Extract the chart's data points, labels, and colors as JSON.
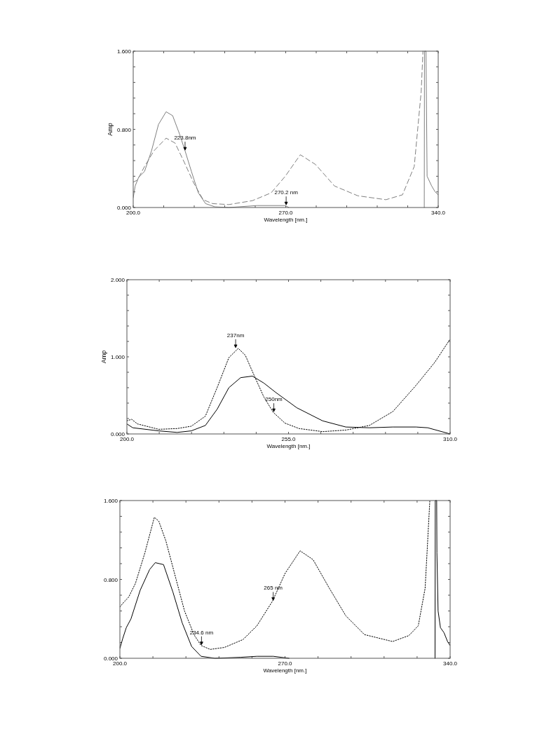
{
  "chart_data": [
    {
      "type": "line",
      "ylabel": "Amp",
      "xlabel": "Wavelength [nm.]",
      "xlim": [
        200,
        340
      ],
      "ylim": [
        0,
        1.6
      ],
      "xticks": [
        {
          "value": 200,
          "label": "200.0"
        },
        {
          "value": 214,
          "label": null
        },
        {
          "value": 228,
          "label": null
        },
        {
          "value": 242,
          "label": null
        },
        {
          "value": 256,
          "label": null
        },
        {
          "value": 270,
          "label": "270.0"
        },
        {
          "value": 284,
          "label": null
        },
        {
          "value": 298,
          "label": null
        },
        {
          "value": 312,
          "label": null
        },
        {
          "value": 326,
          "label": null
        },
        {
          "value": 340,
          "label": "340.0"
        }
      ],
      "yticks": [
        {
          "value": 0,
          "label": "0.000"
        },
        {
          "value": 0.16,
          "label": null
        },
        {
          "value": 0.32,
          "label": null
        },
        {
          "value": 0.48,
          "label": null
        },
        {
          "value": 0.64,
          "label": null
        },
        {
          "value": 0.8,
          "label": "0.800"
        },
        {
          "value": 0.96,
          "label": null
        },
        {
          "value": 1.12,
          "label": null
        },
        {
          "value": 1.28,
          "label": null
        },
        {
          "value": 1.44,
          "label": null
        },
        {
          "value": 1.6,
          "label": "1.600"
        }
      ],
      "grid": false,
      "series": [
        {
          "color": "#7f7f7f",
          "line_style": "solid",
          "x": [
            200,
            200.9,
            202.5,
            205.2,
            208.4,
            211.6,
            215.1,
            218.1,
            221.3,
            223.8,
            226.7,
            229.9,
            233.2,
            237.5,
            243.9,
            256.8,
            269.8,
            271.4,
            272,
            333.6,
            333.7,
            334.4,
            334.9,
            337,
            338.6,
            340
          ],
          "values": [
            0.1,
            0.22,
            0.31,
            0.37,
            0.58,
            0.85,
            0.98,
            0.94,
            0.75,
            0.58,
            0.37,
            0.15,
            0.04,
            0.007,
            0,
            0.02,
            0.02,
            0,
            null,
            0,
            1.6,
            1.6,
            0.32,
            0.22,
            0.16,
            0.13
          ]
        },
        {
          "color": "#7f7f7f",
          "line_style": "dashed",
          "x": [
            200,
            201.9,
            205.2,
            209.5,
            215.1,
            219.2,
            223.5,
            227.8,
            232.1,
            236.4,
            243.9,
            254.7,
            263.3,
            269.8,
            276.7,
            283.7,
            292.4,
            303.1,
            316,
            323.6,
            329,
            332.2,
            333
          ],
          "values": [
            0.26,
            0.28,
            0.42,
            0.58,
            0.71,
            0.66,
            0.46,
            0.25,
            0.08,
            0.04,
            0.03,
            0.07,
            0.15,
            0.32,
            0.54,
            0.44,
            0.22,
            0.12,
            0.08,
            0.13,
            0.42,
            1.19,
            1.6
          ]
        }
      ],
      "annotations": [
        {
          "text": "223.8nm",
          "x": 223.8,
          "y": 0.58
        },
        {
          "text": "270.2 nm",
          "x": 270.2,
          "y": 0.02
        }
      ]
    },
    {
      "type": "line",
      "ylabel": "Amp",
      "xlabel": "Wavelength [nm.]",
      "xlim": [
        200,
        310
      ],
      "ylim": [
        0,
        2
      ],
      "xticks": [
        {
          "value": 200,
          "label": "200.0"
        },
        {
          "value": 211,
          "label": null
        },
        {
          "value": 222,
          "label": null
        },
        {
          "value": 233,
          "label": null
        },
        {
          "value": 244,
          "label": null
        },
        {
          "value": 255,
          "label": "255.0"
        },
        {
          "value": 266,
          "label": null
        },
        {
          "value": 277,
          "label": null
        },
        {
          "value": 288,
          "label": null
        },
        {
          "value": 299,
          "label": null
        },
        {
          "value": 310,
          "label": "310.0"
        }
      ],
      "yticks": [
        {
          "value": 0,
          "label": "0.000"
        },
        {
          "value": 0.2,
          "label": null
        },
        {
          "value": 0.4,
          "label": null
        },
        {
          "value": 0.6,
          "label": null
        },
        {
          "value": 0.8,
          "label": null
        },
        {
          "value": 1,
          "label": "1.000"
        },
        {
          "value": 1.2,
          "label": null
        },
        {
          "value": 1.4,
          "label": null
        },
        {
          "value": 1.6,
          "label": null
        },
        {
          "value": 1.8,
          "label": null
        },
        {
          "value": 2,
          "label": "2.000"
        }
      ],
      "grid": false,
      "series": [
        {
          "color": "#000000",
          "line_style": "dotted",
          "x": [
            200,
            201.6,
            203.6,
            210.8,
            217.1,
            221.9,
            226.7,
            230.7,
            234.7,
            237.9,
            240.3,
            243.4,
            246.6,
            249.8,
            253.8,
            258.6,
            266.6,
            274.5,
            282.5,
            290.5,
            298.4,
            304.8,
            310
          ],
          "values": [
            0.17,
            0.19,
            0.13,
            0.06,
            0.07,
            0.1,
            0.23,
            0.6,
            0.99,
            1.11,
            1.02,
            0.75,
            0.48,
            0.28,
            0.14,
            0.07,
            0.03,
            0.05,
            0.11,
            0.29,
            0.63,
            0.93,
            1.23
          ]
        },
        {
          "color": "#000000",
          "line_style": "solid",
          "x": [
            200,
            202,
            210.8,
            217.1,
            221.9,
            226.7,
            230.7,
            234.7,
            238.7,
            242.7,
            246.6,
            250.6,
            257.8,
            266.6,
            274.5,
            282.5,
            290.5,
            298.4,
            302.4,
            310
          ],
          "values": [
            0.13,
            0.08,
            0.04,
            0.02,
            0.04,
            0.11,
            0.32,
            0.6,
            0.73,
            0.75,
            0.66,
            0.54,
            0.34,
            0.17,
            0.09,
            0.08,
            0.09,
            0.09,
            0.08,
            0
          ]
        }
      ],
      "annotations": [
        {
          "text": "237nm",
          "x": 237,
          "y": 1.11
        },
        {
          "text": "250nm",
          "x": 250,
          "y": 0.28
        }
      ]
    },
    {
      "type": "line",
      "xlabel": "Wavelength [nm.]",
      "xlim": [
        200,
        340
      ],
      "ylim": [
        0,
        1.6
      ],
      "xticks": [
        {
          "value": 200,
          "label": "200.0"
        },
        {
          "value": 214,
          "label": null
        },
        {
          "value": 228,
          "label": null
        },
        {
          "value": 242,
          "label": null
        },
        {
          "value": 256,
          "label": null
        },
        {
          "value": 270,
          "label": "270.0"
        },
        {
          "value": 284,
          "label": null
        },
        {
          "value": 298,
          "label": null
        },
        {
          "value": 312,
          "label": null
        },
        {
          "value": 326,
          "label": null
        },
        {
          "value": 340,
          "label": "340.0"
        }
      ],
      "yticks": [
        {
          "value": 0,
          "label": "0.000"
        },
        {
          "value": 0.16,
          "label": null
        },
        {
          "value": 0.32,
          "label": null
        },
        {
          "value": 0.48,
          "label": null
        },
        {
          "value": 0.64,
          "label": null
        },
        {
          "value": 0.8,
          "label": "0.800"
        },
        {
          "value": 0.96,
          "label": null
        },
        {
          "value": 1.12,
          "label": null
        },
        {
          "value": 1.28,
          "label": null
        },
        {
          "value": 1.44,
          "label": null
        },
        {
          "value": 1.6,
          "label": "1.600"
        }
      ],
      "grid": false,
      "series": [
        {
          "color": "#000000",
          "line_style": "dotted",
          "x": [
            200,
            201.7,
            203.7,
            206.6,
            210.6,
            214.6,
            216.5,
            219.5,
            223.5,
            227.4,
            231.4,
            234.4,
            238.3,
            244.3,
            252.2,
            258.1,
            264.7,
            270,
            276.4,
            281.9,
            288.8,
            295.8,
            303.7,
            315.6,
            322.5,
            326.5,
            329.4,
            331.4
          ],
          "values": [
            0.52,
            0.57,
            0.62,
            0.76,
            1.07,
            1.43,
            1.39,
            1.19,
            0.83,
            0.48,
            0.24,
            0.13,
            0.09,
            0.11,
            0.19,
            0.33,
            0.58,
            0.86,
            1.09,
            1,
            0.71,
            0.43,
            0.24,
            0.17,
            0.23,
            0.33,
            0.71,
            1.6
          ]
        },
        {
          "color": "#000000",
          "line_style": "solid",
          "x": [
            200,
            201.2,
            202.7,
            204.7,
            208.6,
            212.6,
            215,
            218.5,
            222.5,
            226.4,
            230.4,
            234.4,
            240.3,
            251.2,
            258.1,
            265,
            271.7,
            272,
            333.6,
            333.7,
            334.3,
            334.4,
            334.9,
            335.9,
            337.4,
            338.9,
            340
          ],
          "values": [
            0.1,
            0.2,
            0.31,
            0.4,
            0.69,
            0.9,
            0.97,
            0.95,
            0.67,
            0.36,
            0.12,
            0.02,
            0,
            0.01,
            0.02,
            0.02,
            0,
            null,
            0,
            1.6,
            1.6,
            1.07,
            0.48,
            0.31,
            0.26,
            0.17,
            0.13
          ]
        }
      ],
      "annotations": [
        {
          "text": "234.6 nm",
          "x": 234.6,
          "y": 0.13
        },
        {
          "text": "265 nm",
          "x": 265,
          "y": 0.58
        }
      ]
    }
  ]
}
